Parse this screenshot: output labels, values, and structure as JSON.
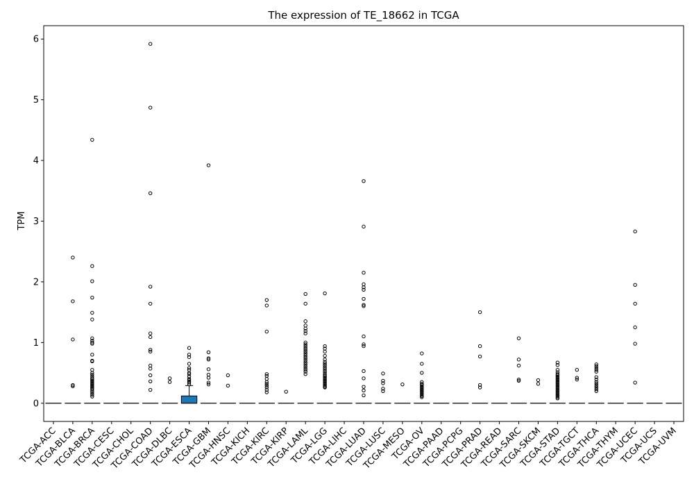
{
  "chart_data": {
    "type": "box",
    "title": "The expression of TE_18662 in TCGA",
    "xlabel": "",
    "ylabel": "TPM",
    "ylim": [
      -0.3,
      6.22
    ],
    "yticks": [
      0,
      1,
      2,
      3,
      4,
      5,
      6
    ],
    "grid": false,
    "legend": "none",
    "box_color": "#1f77b4",
    "categories": [
      "TCGA-ACC",
      "TCGA-BLCA",
      "TCGA-BRCA",
      "TCGA-CESC",
      "TCGA-CHOL",
      "TCGA-COAD",
      "TCGA-DLBC",
      "TCGA-ESCA",
      "TCGA-GBM",
      "TCGA-HNSC",
      "TCGA-KICH",
      "TCGA-KIRC",
      "TCGA-KIRP",
      "TCGA-LAML",
      "TCGA-LGG",
      "TCGA-LIHC",
      "TCGA-LUAD",
      "TCGA-LUSC",
      "TCGA-MESO",
      "TCGA-OV",
      "TCGA-PAAD",
      "TCGA-PCPG",
      "TCGA-PRAD",
      "TCGA-READ",
      "TCGA-SARC",
      "TCGA-SKCM",
      "TCGA-STAD",
      "TCGA-TGCT",
      "TCGA-THCA",
      "TCGA-THYM",
      "TCGA-UCEC",
      "TCGA-UCS",
      "TCGA-UVM"
    ],
    "boxes": [
      {
        "category": "TCGA-ACC",
        "q1": 0,
        "median": 0,
        "q3": 0,
        "whisker_low": 0,
        "whisker_high": 0,
        "outliers": []
      },
      {
        "category": "TCGA-BLCA",
        "q1": 0,
        "median": 0,
        "q3": 0,
        "whisker_low": 0,
        "whisker_high": 0,
        "outliers": [
          2.4,
          1.68,
          1.05,
          0.3,
          0.28
        ]
      },
      {
        "category": "TCGA-BRCA",
        "q1": 0,
        "median": 0,
        "q3": 0,
        "whisker_low": 0,
        "whisker_high": 0,
        "outliers": [
          4.34,
          2.26,
          2.01,
          1.74,
          1.49,
          1.38,
          1.07,
          1.03,
          1.0,
          0.98,
          0.8,
          0.7,
          0.69,
          0.55,
          0.5,
          0.47,
          0.44,
          0.41,
          0.39,
          0.37,
          0.35,
          0.33,
          0.31,
          0.29,
          0.27,
          0.25,
          0.23,
          0.2,
          0.17,
          0.14,
          0.11
        ]
      },
      {
        "category": "TCGA-CESC",
        "q1": 0,
        "median": 0,
        "q3": 0,
        "whisker_low": 0,
        "whisker_high": 0,
        "outliers": []
      },
      {
        "category": "TCGA-CHOL",
        "q1": 0,
        "median": 0,
        "q3": 0,
        "whisker_low": 0,
        "whisker_high": 0,
        "outliers": []
      },
      {
        "category": "TCGA-COAD",
        "q1": 0,
        "median": 0,
        "q3": 0,
        "whisker_low": 0,
        "whisker_high": 0,
        "outliers": [
          5.92,
          4.87,
          3.46,
          1.92,
          1.64,
          1.15,
          1.09,
          0.88,
          0.85,
          0.62,
          0.57,
          0.46,
          0.36,
          0.22
        ]
      },
      {
        "category": "TCGA-DLBC",
        "q1": 0,
        "median": 0,
        "q3": 0,
        "whisker_low": 0,
        "whisker_high": 0,
        "outliers": [
          0.41,
          0.35
        ]
      },
      {
        "category": "TCGA-ESCA",
        "q1": 0,
        "median": 0,
        "q3": 0.12,
        "whisker_low": 0,
        "whisker_high": 0.29,
        "outliers": [
          0.91,
          0.8,
          0.76,
          0.65,
          0.58,
          0.55,
          0.5,
          0.48,
          0.44,
          0.4,
          0.38,
          0.36,
          0.34,
          0.31
        ]
      },
      {
        "category": "TCGA-GBM",
        "q1": 0,
        "median": 0,
        "q3": 0,
        "whisker_low": 0,
        "whisker_high": 0,
        "outliers": [
          3.92,
          0.84,
          0.74,
          0.72,
          0.56,
          0.47,
          0.42,
          0.34,
          0.31
        ]
      },
      {
        "category": "TCGA-HNSC",
        "q1": 0,
        "median": 0,
        "q3": 0,
        "whisker_low": 0,
        "whisker_high": 0,
        "outliers": [
          0.46,
          0.29
        ]
      },
      {
        "category": "TCGA-KICH",
        "q1": 0,
        "median": 0,
        "q3": 0,
        "whisker_low": 0,
        "whisker_high": 0,
        "outliers": []
      },
      {
        "category": "TCGA-KIRC",
        "q1": 0,
        "median": 0,
        "q3": 0,
        "whisker_low": 0,
        "whisker_high": 0,
        "outliers": [
          1.7,
          1.61,
          1.18,
          0.48,
          0.45,
          0.4,
          0.35,
          0.32,
          0.29,
          0.26,
          0.22,
          0.18
        ]
      },
      {
        "category": "TCGA-KIRP",
        "q1": 0,
        "median": 0,
        "q3": 0,
        "whisker_low": 0,
        "whisker_high": 0,
        "outliers": [
          0.19
        ]
      },
      {
        "category": "TCGA-LAML",
        "q1": 0,
        "median": 0,
        "q3": 0,
        "whisker_low": 0,
        "whisker_high": 0,
        "outliers": [
          1.8,
          1.64,
          1.35,
          1.28,
          1.23,
          1.19,
          1.15,
          1.0,
          0.97,
          0.94,
          0.91,
          0.88,
          0.85,
          0.82,
          0.79,
          0.76,
          0.73,
          0.7,
          0.67,
          0.64,
          0.61,
          0.58,
          0.55,
          0.52,
          0.48
        ]
      },
      {
        "category": "TCGA-LGG",
        "q1": 0,
        "median": 0,
        "q3": 0,
        "whisker_low": 0,
        "whisker_high": 0,
        "outliers": [
          1.81,
          0.94,
          0.9,
          0.85,
          0.78,
          0.72,
          0.68,
          0.65,
          0.62,
          0.59,
          0.56,
          0.53,
          0.5,
          0.47,
          0.45,
          0.43,
          0.41,
          0.39,
          0.37,
          0.35,
          0.33,
          0.31,
          0.29,
          0.27,
          0.26
        ]
      },
      {
        "category": "TCGA-LIHC",
        "q1": 0,
        "median": 0,
        "q3": 0,
        "whisker_low": 0,
        "whisker_high": 0,
        "outliers": []
      },
      {
        "category": "TCGA-LUAD",
        "q1": 0,
        "median": 0,
        "q3": 0,
        "whisker_low": 0,
        "whisker_high": 0,
        "outliers": [
          3.66,
          2.91,
          2.15,
          1.96,
          1.91,
          1.87,
          1.72,
          1.62,
          1.6,
          1.1,
          0.97,
          0.94,
          0.53,
          0.41,
          0.27,
          0.21,
          0.13
        ]
      },
      {
        "category": "TCGA-LUSC",
        "q1": 0,
        "median": 0,
        "q3": 0,
        "whisker_low": 0,
        "whisker_high": 0,
        "outliers": [
          0.49,
          0.37,
          0.33,
          0.24,
          0.2
        ]
      },
      {
        "category": "TCGA-MESO",
        "q1": 0,
        "median": 0,
        "q3": 0,
        "whisker_low": 0,
        "whisker_high": 0,
        "outliers": [
          0.31
        ]
      },
      {
        "category": "TCGA-OV",
        "q1": 0,
        "median": 0,
        "q3": 0,
        "whisker_low": 0,
        "whisker_high": 0,
        "outliers": [
          0.82,
          0.65,
          0.5,
          0.35,
          0.32,
          0.3,
          0.28,
          0.26,
          0.24,
          0.22,
          0.2,
          0.18,
          0.16,
          0.14,
          0.12,
          0.1
        ]
      },
      {
        "category": "TCGA-PAAD",
        "q1": 0,
        "median": 0,
        "q3": 0,
        "whisker_low": 0,
        "whisker_high": 0,
        "outliers": []
      },
      {
        "category": "TCGA-PCPG",
        "q1": 0,
        "median": 0,
        "q3": 0,
        "whisker_low": 0,
        "whisker_high": 0,
        "outliers": []
      },
      {
        "category": "TCGA-PRAD",
        "q1": 0,
        "median": 0,
        "q3": 0,
        "whisker_low": 0,
        "whisker_high": 0,
        "outliers": [
          1.5,
          0.94,
          0.77,
          0.3,
          0.26
        ]
      },
      {
        "category": "TCGA-READ",
        "q1": 0,
        "median": 0,
        "q3": 0,
        "whisker_low": 0,
        "whisker_high": 0,
        "outliers": []
      },
      {
        "category": "TCGA-SARC",
        "q1": 0,
        "median": 0,
        "q3": 0,
        "whisker_low": 0,
        "whisker_high": 0,
        "outliers": [
          1.07,
          0.72,
          0.62,
          0.39,
          0.37
        ]
      },
      {
        "category": "TCGA-SKCM",
        "q1": 0,
        "median": 0,
        "q3": 0,
        "whisker_low": 0,
        "whisker_high": 0,
        "outliers": [
          0.38,
          0.32
        ]
      },
      {
        "category": "TCGA-STAD",
        "q1": 0,
        "median": 0,
        "q3": 0,
        "whisker_low": 0,
        "whisker_high": 0,
        "outliers": [
          0.67,
          0.63,
          0.55,
          0.51,
          0.48,
          0.46,
          0.44,
          0.42,
          0.4,
          0.38,
          0.36,
          0.34,
          0.32,
          0.3,
          0.28,
          0.26,
          0.24,
          0.22,
          0.2,
          0.18,
          0.16,
          0.14,
          0.12,
          0.1,
          0.08
        ]
      },
      {
        "category": "TCGA-TGCT",
        "q1": 0,
        "median": 0,
        "q3": 0,
        "whisker_low": 0,
        "whisker_high": 0,
        "outliers": [
          0.55,
          0.42,
          0.39
        ]
      },
      {
        "category": "TCGA-THCA",
        "q1": 0,
        "median": 0,
        "q3": 0,
        "whisker_low": 0,
        "whisker_high": 0,
        "outliers": [
          0.64,
          0.61,
          0.58,
          0.55,
          0.52,
          0.43,
          0.39,
          0.35,
          0.32,
          0.29,
          0.26,
          0.23,
          0.2
        ]
      },
      {
        "category": "TCGA-THYM",
        "q1": 0,
        "median": 0,
        "q3": 0,
        "whisker_low": 0,
        "whisker_high": 0,
        "outliers": []
      },
      {
        "category": "TCGA-UCEC",
        "q1": 0,
        "median": 0,
        "q3": 0,
        "whisker_low": 0,
        "whisker_high": 0,
        "outliers": [
          2.83,
          1.95,
          1.64,
          1.25,
          0.98,
          0.34
        ]
      },
      {
        "category": "TCGA-UCS",
        "q1": 0,
        "median": 0,
        "q3": 0,
        "whisker_low": 0,
        "whisker_high": 0,
        "outliers": []
      },
      {
        "category": "TCGA-UVM",
        "q1": 0,
        "median": 0,
        "q3": 0,
        "whisker_low": 0,
        "whisker_high": 0,
        "outliers": []
      }
    ]
  }
}
